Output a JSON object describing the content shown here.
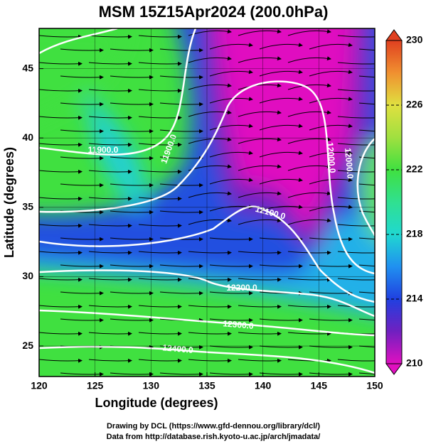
{
  "title": "MSM 15Z15Apr2024 (200.0hPa)",
  "x_label": "Longitude (degrees)",
  "y_label": "Latitude  (degrees)",
  "xlim": [
    120,
    150
  ],
  "xticks": [
    120,
    125,
    130,
    135,
    140,
    145,
    150
  ],
  "ylim": [
    22.8,
    47.9
  ],
  "yticks": [
    25,
    30,
    35,
    40,
    45
  ],
  "colorbar": {
    "lim": [
      210,
      230
    ],
    "ticks": [
      210,
      214,
      218,
      222,
      226,
      230
    ]
  },
  "contour_labels": [
    "11900.0",
    "11900.0",
    "12000.0",
    "12000.0",
    "12100.0",
    "12200.0",
    "12300.0",
    "12400.0"
  ],
  "credits": [
    "Drawing by DCL (https://www.gfd-dennou.org/library/dcl/)",
    "Data from http://database.rish.kyoto-u.ac.jp/arch/jmadata/"
  ]
}
